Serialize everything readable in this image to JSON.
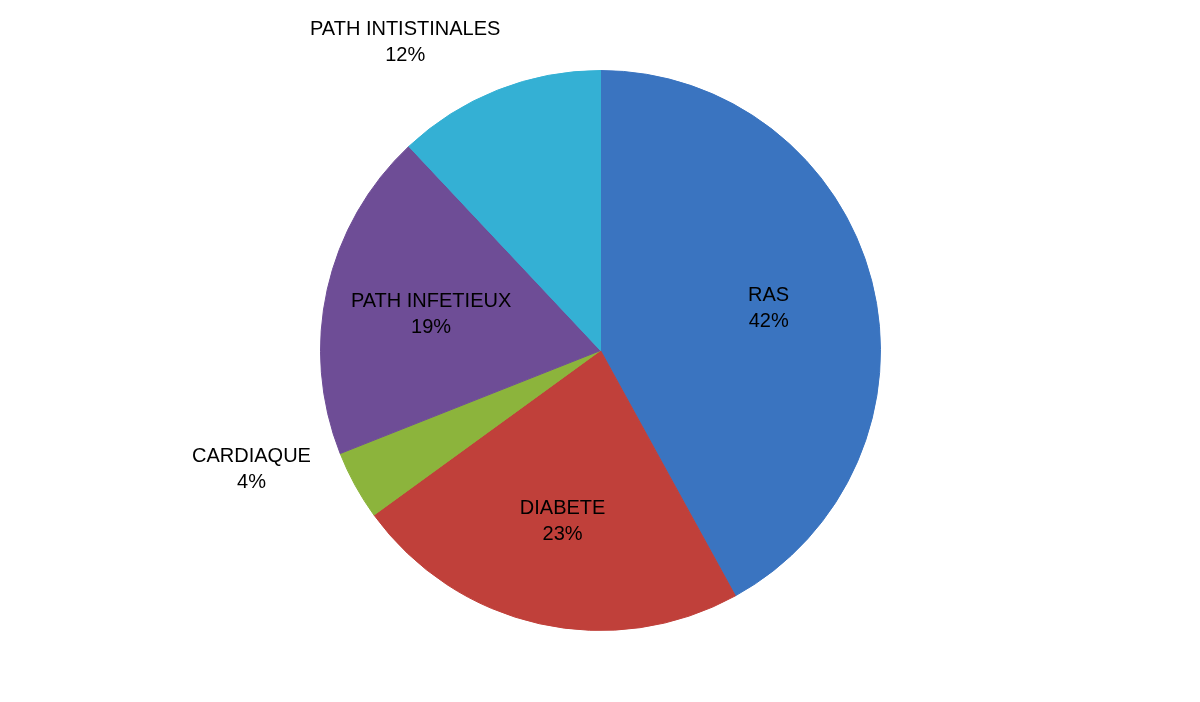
{
  "chart_data": {
    "type": "pie",
    "categories": [
      "RAS",
      "DIABETE",
      "CARDIAQUE",
      "PATH INFETIEUX",
      "PATH INTISTINALES"
    ],
    "values": [
      42,
      23,
      4,
      19,
      12
    ],
    "value_labels": [
      "42%",
      "23%",
      "4%",
      "19%",
      "12%"
    ],
    "colors": [
      "#3a74c0",
      "#c0403a",
      "#8cb43c",
      "#6e4d96",
      "#34b0d4"
    ]
  }
}
